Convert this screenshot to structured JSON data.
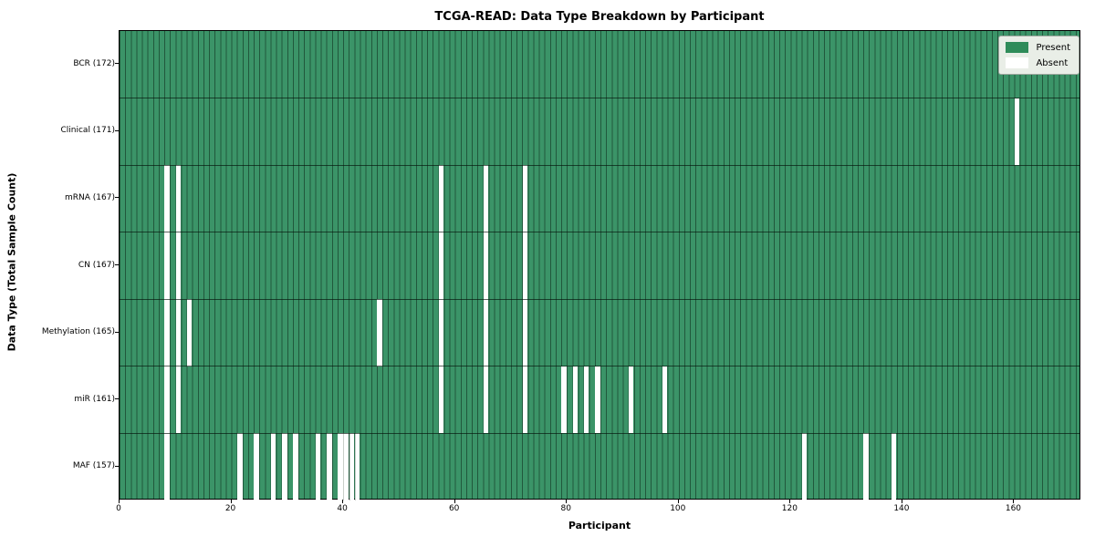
{
  "chart_data": {
    "type": "heatmap",
    "title": "TCGA-READ: Data Type Breakdown by Participant",
    "xlabel": "Participant",
    "ylabel": "Data Type (Total Sample Count)",
    "n_participants": 172,
    "x_ticks": [
      0,
      20,
      40,
      60,
      80,
      100,
      120,
      140,
      160
    ],
    "rows": [
      {
        "label": "BCR (172)",
        "name": "BCR",
        "total": 172,
        "absent_participants": []
      },
      {
        "label": "Clinical (171)",
        "name": "Clinical",
        "total": 171,
        "absent_participants": [
          160
        ]
      },
      {
        "label": "mRNA (167)",
        "name": "mRNA",
        "total": 167,
        "absent_participants": [
          8,
          10,
          57,
          65,
          72
        ]
      },
      {
        "label": "CN (167)",
        "name": "CN",
        "total": 167,
        "absent_participants": [
          8,
          10,
          57,
          65,
          72
        ]
      },
      {
        "label": "Methylation (165)",
        "name": "Methylation",
        "total": 165,
        "absent_participants": [
          8,
          10,
          12,
          46,
          57,
          65,
          72
        ]
      },
      {
        "label": "miR (161)",
        "name": "miR",
        "total": 161,
        "absent_participants": [
          8,
          10,
          57,
          65,
          72,
          79,
          81,
          83,
          85,
          91,
          97
        ]
      },
      {
        "label": "MAF (157)",
        "name": "MAF",
        "total": 157,
        "absent_participants": [
          8,
          21,
          24,
          27,
          29,
          31,
          35,
          37,
          39,
          40,
          41,
          42,
          122,
          133,
          138
        ]
      }
    ],
    "legend": [
      {
        "label": "Present",
        "color": "#2f8c5a"
      },
      {
        "label": "Absent",
        "color": "#ffffff"
      }
    ],
    "colors": {
      "present": "#3b9468",
      "absent": "#ffffff",
      "grid_line": "rgba(12,38,24,0.55)",
      "row_line": "rgba(5,18,10,0.65)"
    },
    "legend_position": "upper right",
    "grid": true
  }
}
